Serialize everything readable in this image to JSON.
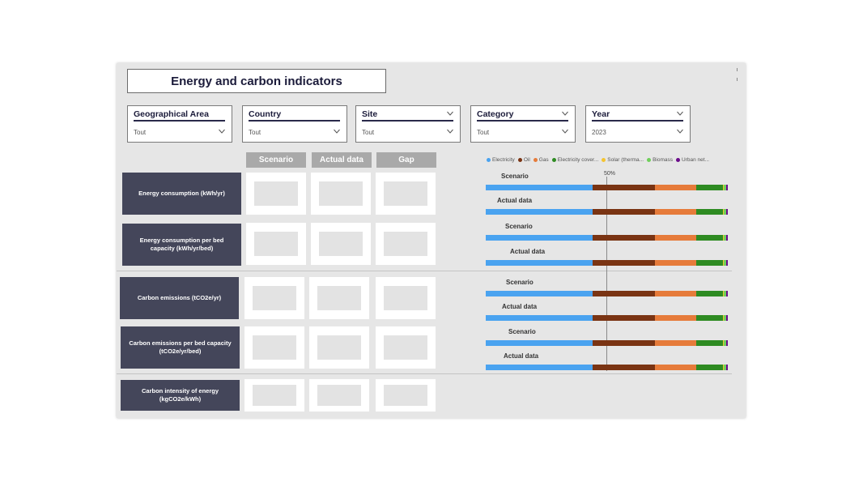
{
  "title": "Energy and carbon indicators",
  "filters": [
    {
      "label": "Geographical Area",
      "value": "Tout"
    },
    {
      "label": "Country",
      "value": "Tout"
    },
    {
      "label": "Site",
      "value": "Tout"
    },
    {
      "label": "Category",
      "value": "Tout"
    },
    {
      "label": "Year",
      "value": "2023"
    }
  ],
  "columns": [
    "Scenario",
    "Actual data",
    "Gap"
  ],
  "rows": [
    {
      "label": "Energy consumption (kWh/yr)"
    },
    {
      "label": "Energy consumption per bed capacity (kWh/yr/bed)"
    },
    {
      "label": "Carbon emissions (tCO2e/yr)"
    },
    {
      "label": "Carbon emissions per bed capacity (tCO2e/yr/bed)"
    },
    {
      "label": "Carbon intensity of energy (kgCO2e/kWh)"
    }
  ],
  "legend": [
    {
      "name": "Electricity",
      "color": "#4aa3f0"
    },
    {
      "name": "Oil",
      "color": "#7a3413"
    },
    {
      "name": "Gas",
      "color": "#e67b3a"
    },
    {
      "name": "Electricity cover...",
      "color": "#2e8b22"
    },
    {
      "name": "Solar (therma...",
      "color": "#f4c430"
    },
    {
      "name": "Biomass",
      "color": "#6fcf5a"
    },
    {
      "name": "Urban net...",
      "color": "#6a0b8a"
    }
  ],
  "reference_label": "50%",
  "chart_data": {
    "type": "bar",
    "stacked": true,
    "normalized": true,
    "reference_line": 0.5,
    "categories": [
      "Scenario",
      "Actual data",
      "Scenario",
      "Actual data",
      "Scenario",
      "Actual data",
      "Scenario",
      "Actual data"
    ],
    "series": [
      {
        "name": "Electricity",
        "color": "#4aa3f0",
        "values": [
          0.44,
          0.44,
          0.44,
          0.44,
          0.44,
          0.44,
          0.44,
          0.44
        ]
      },
      {
        "name": "Oil",
        "color": "#7a3413",
        "values": [
          0.26,
          0.26,
          0.26,
          0.26,
          0.26,
          0.26,
          0.26,
          0.26
        ]
      },
      {
        "name": "Gas",
        "color": "#e67b3a",
        "values": [
          0.17,
          0.17,
          0.17,
          0.17,
          0.17,
          0.17,
          0.17,
          0.17
        ]
      },
      {
        "name": "Electricity cover...",
        "color": "#2e8b22",
        "values": [
          0.11,
          0.11,
          0.11,
          0.11,
          0.11,
          0.11,
          0.11,
          0.11
        ]
      },
      {
        "name": "Solar (therma...",
        "color": "#f4c430",
        "values": [
          0.005,
          0.005,
          0.005,
          0.005,
          0.005,
          0.005,
          0.005,
          0.005
        ]
      },
      {
        "name": "Biomass",
        "color": "#6fcf5a",
        "values": [
          0.01,
          0.01,
          0.01,
          0.01,
          0.01,
          0.01,
          0.01,
          0.01
        ]
      },
      {
        "name": "Urban net...",
        "color": "#6a0b8a",
        "values": [
          0.005,
          0.005,
          0.005,
          0.005,
          0.005,
          0.005,
          0.005,
          0.005
        ]
      }
    ]
  }
}
